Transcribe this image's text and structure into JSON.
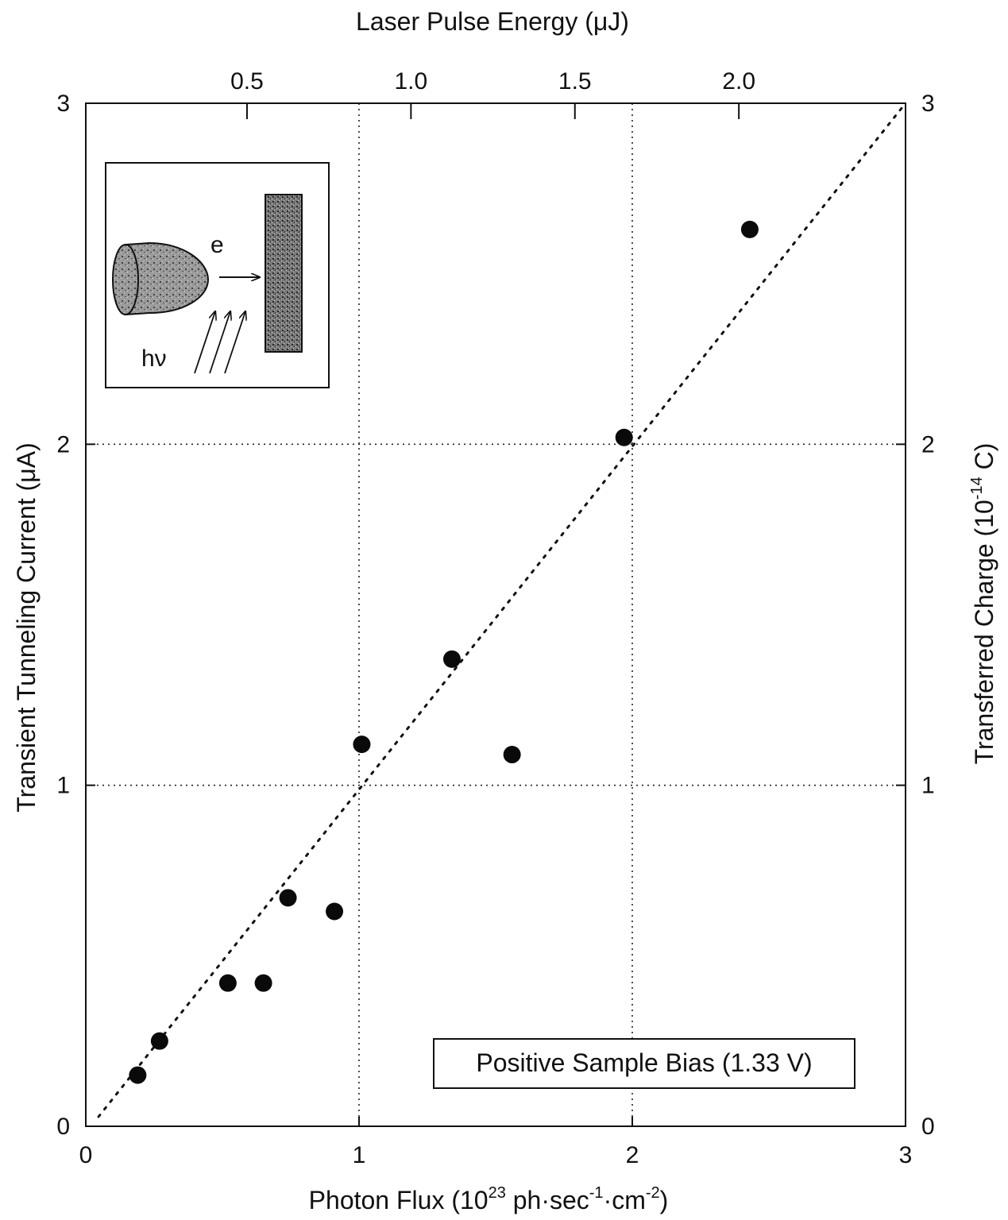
{
  "chart_data": {
    "type": "scatter",
    "title": "",
    "xlabel": "Photon Flux (10^23 ph·sec^-1·cm^-2)",
    "xlabel_parts": {
      "main": "Photon Flux (10",
      "exp1": "23",
      "mid1": " ph·sec",
      "exp2": "-1",
      "mid2": "·cm",
      "exp3": "-2",
      "end": ")"
    },
    "ylabel": "Transient Tunneling Current (μA)",
    "top_xlabel": "Laser Pulse Energy (μJ)",
    "right_ylabel_parts": {
      "main": "Transferred Charge (10",
      "exp": "-14",
      "end": " C)"
    },
    "xlim": [
      0,
      3
    ],
    "ylim": [
      0,
      3
    ],
    "x_ticks": [
      "0",
      "1",
      "2",
      "3"
    ],
    "y_ticks": [
      "0",
      "1",
      "2",
      "3"
    ],
    "right_ticks": [
      "0",
      "1",
      "2",
      "3"
    ],
    "top_ticks": [
      {
        "label": "0.5",
        "x": 0.59
      },
      {
        "label": "1.0",
        "x": 1.19
      },
      {
        "label": "1.5",
        "x": 1.79
      },
      {
        "label": "2.0",
        "x": 2.39
      }
    ],
    "grid": "dotted, at x=1,2 and y=1,2",
    "series": [
      {
        "points": [
          {
            "x": 0.19,
            "y": 0.15
          },
          {
            "x": 0.27,
            "y": 0.25
          },
          {
            "x": 0.52,
            "y": 0.42
          },
          {
            "x": 0.65,
            "y": 0.42
          },
          {
            "x": 0.74,
            "y": 0.67
          },
          {
            "x": 0.91,
            "y": 0.63
          },
          {
            "x": 1.01,
            "y": 1.12
          },
          {
            "x": 1.34,
            "y": 1.37
          },
          {
            "x": 1.56,
            "y": 1.09
          },
          {
            "x": 1.97,
            "y": 2.02
          },
          {
            "x": 2.43,
            "y": 2.63
          }
        ]
      }
    ],
    "fit_line": {
      "style": "dotted",
      "from": [
        0,
        0
      ],
      "to": [
        3,
        3
      ]
    },
    "annotation": "Positive Sample Bias (1.33 V)",
    "inset": {
      "label_electron": "e",
      "label_photon": "hν"
    }
  }
}
